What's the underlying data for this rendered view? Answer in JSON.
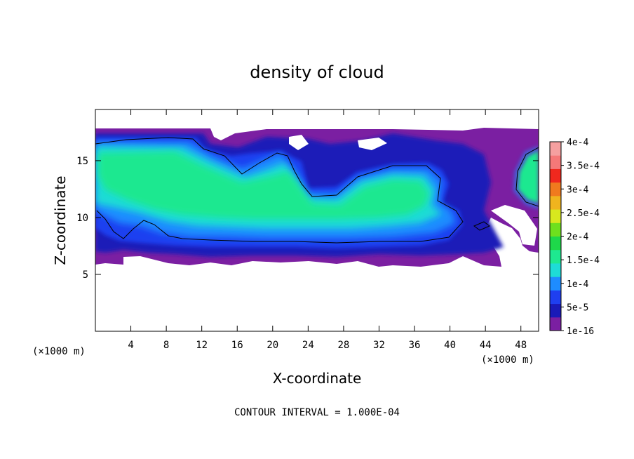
{
  "chart_data": {
    "type": "heatmap",
    "title": "density of cloud",
    "xlabel": "X-coordinate",
    "ylabel": "Z-coordinate",
    "x_unit": "(×1000 m)",
    "x_unit_right": "(×1000 m)",
    "xlim": [
      0,
      50
    ],
    "ylim": [
      0,
      19.5
    ],
    "x_ticks": [
      4,
      8,
      12,
      16,
      20,
      24,
      28,
      32,
      36,
      40,
      44,
      48
    ],
    "y_ticks": [
      5,
      10,
      15
    ],
    "colorbar_labels": [
      "1e-16",
      "5e-5",
      "1e-4",
      "1.5e-4",
      "2e-4",
      "2.5e-4",
      "3e-4",
      "3.5e-4",
      "4e-4"
    ],
    "colorbar_colors": [
      "#7b1fa2",
      "#1a1ab8",
      "#1f3ff0",
      "#1e8cff",
      "#1edcd6",
      "#1ee890",
      "#1ed84a",
      "#6ee01e",
      "#d8e81e",
      "#f0b41e",
      "#f07a1e",
      "#f0281e",
      "#f57878",
      "#f5a0a0"
    ],
    "contour_interval_text": "CONTOUR INTERVAL = 1.000E-04",
    "contour_levels": [
      0.0001
    ],
    "regions": {
      "cloud_outer_z": [
        6.2,
        18.2
      ],
      "main_core_x": [
        0,
        40
      ],
      "main_core_z": [
        8.5,
        17.0
      ],
      "contour_1e4_base_z": 8.0,
      "contour_1e4_top_z": 17.3
    }
  }
}
